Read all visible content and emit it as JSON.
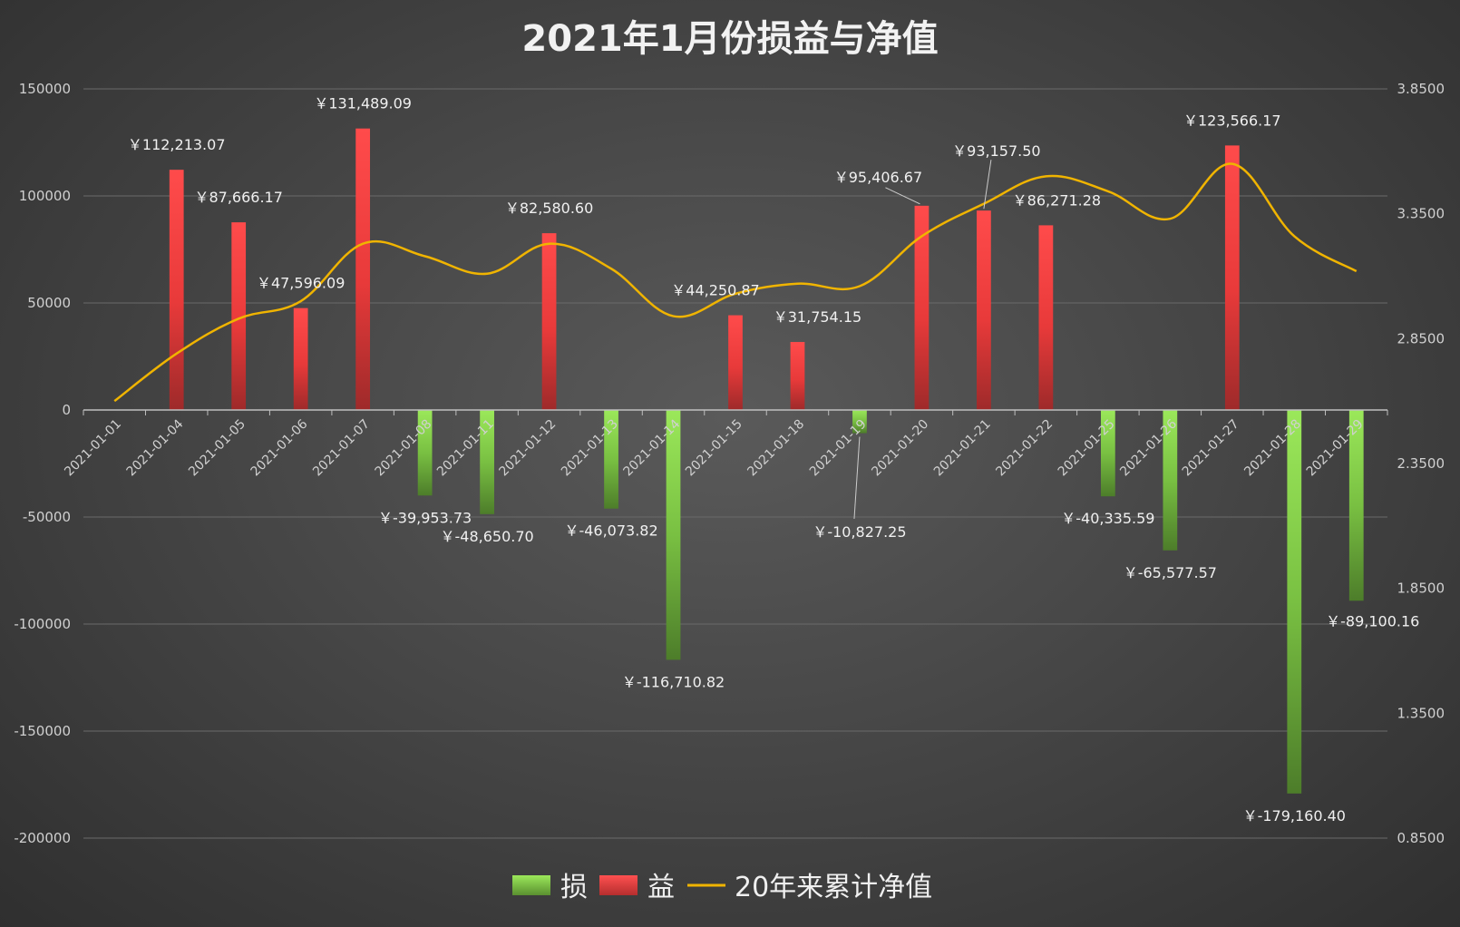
{
  "chart_data": {
    "type": "bar+line",
    "title": "2021年1月份损益与净值",
    "categories": [
      "2021-01-01",
      "2021-01-04",
      "2021-01-05",
      "2021-01-06",
      "2021-01-07",
      "2021-01-08",
      "2021-01-11",
      "2021-01-12",
      "2021-01-13",
      "2021-01-14",
      "2021-01-15",
      "2021-01-18",
      "2021-01-19",
      "2021-01-20",
      "2021-01-21",
      "2021-01-22",
      "2021-01-25",
      "2021-01-26",
      "2021-01-27",
      "2021-01-28",
      "2021-01-29"
    ],
    "pnl": [
      null,
      112213.07,
      87666.17,
      47596.09,
      131489.09,
      -39953.73,
      -48650.7,
      82580.6,
      -46073.82,
      -116710.82,
      44250.87,
      31754.15,
      -10827.25,
      95406.67,
      93157.5,
      86271.28,
      -40335.59,
      -65577.57,
      123566.17,
      -179160.4,
      -89100.16
    ],
    "pnl_labels": [
      "",
      "￥112,213.07",
      "￥87,666.17",
      "￥47,596.09",
      "￥131,489.09",
      "￥-39,953.73",
      "￥-48,650.70",
      "￥82,580.60",
      "￥-46,073.82",
      "￥-116,710.82",
      "￥44,250.87",
      "￥31,754.15",
      "￥-10,827.25",
      "￥95,406.67",
      "￥93,157.50",
      "￥86,271.28",
      "￥-40,335.59",
      "￥-65,577.57",
      "￥123,566.17",
      "￥-179,160.40",
      "￥-89,100.16"
    ],
    "nav": [
      2.6,
      2.79,
      2.93,
      3.0,
      3.23,
      3.18,
      3.11,
      3.23,
      3.13,
      2.94,
      3.03,
      3.07,
      3.06,
      3.26,
      3.39,
      3.5,
      3.44,
      3.33,
      3.55,
      3.26,
      3.12
    ],
    "y_left": {
      "min": -200000,
      "max": 150000,
      "step": 50000,
      "ticks": [
        "150000",
        "100000",
        "50000",
        "0",
        "-50000",
        "-100000",
        "-150000",
        "-200000"
      ]
    },
    "y_right": {
      "min": 0.85,
      "max": 3.85,
      "step": 0.5,
      "ticks": [
        "3.8500",
        "3.3500",
        "2.8500",
        "2.3500",
        "1.8500",
        "1.3500",
        "0.8500"
      ]
    },
    "colors": {
      "loss": "#8fd14f",
      "gain": "#ff4040",
      "nav": "#f0b400",
      "grid": "#6a6a6a",
      "axis": "#bfbfbf"
    },
    "grid": true,
    "legend_position": "bottom",
    "legend": {
      "loss": "损",
      "gain": "益",
      "nav": "20年来累计净值"
    }
  }
}
